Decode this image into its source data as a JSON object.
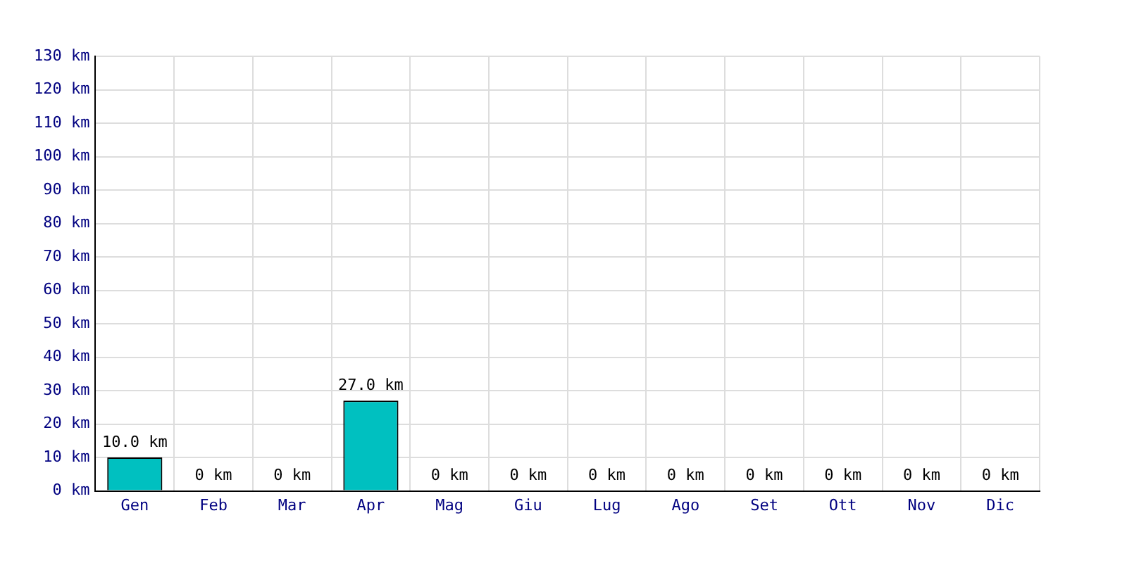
{
  "chart_data": {
    "type": "bar",
    "categories": [
      "Gen",
      "Feb",
      "Mar",
      "Apr",
      "Mag",
      "Giu",
      "Lug",
      "Ago",
      "Set",
      "Ott",
      "Nov",
      "Dic"
    ],
    "values": [
      10,
      0,
      0,
      27,
      0,
      0,
      0,
      0,
      0,
      0,
      0,
      0
    ],
    "value_labels": [
      "10.0 km",
      "0 km",
      "0 km",
      "27.0 km",
      "0 km",
      "0 km",
      "0 km",
      "0 km",
      "0 km",
      "0 km",
      "0 km",
      "0 km"
    ],
    "color": "#00c0c0",
    "ylim": [
      0,
      130
    ],
    "yticks": [
      {
        "value": 0,
        "label": "0 km"
      },
      {
        "value": 10,
        "label": "10 km"
      },
      {
        "value": 20,
        "label": "20 km"
      },
      {
        "value": 30,
        "label": "30 km"
      },
      {
        "value": 40,
        "label": "40 km"
      },
      {
        "value": 50,
        "label": "50 km"
      },
      {
        "value": 60,
        "label": "60 km"
      },
      {
        "value": 70,
        "label": "70 km"
      },
      {
        "value": 80,
        "label": "80 km"
      },
      {
        "value": 90,
        "label": "90 km"
      },
      {
        "value": 100,
        "label": "100 km"
      },
      {
        "value": 110,
        "label": "110 km"
      },
      {
        "value": 120,
        "label": "120 km"
      },
      {
        "value": 130,
        "label": "130 km"
      }
    ],
    "grid": true,
    "legend": false
  }
}
